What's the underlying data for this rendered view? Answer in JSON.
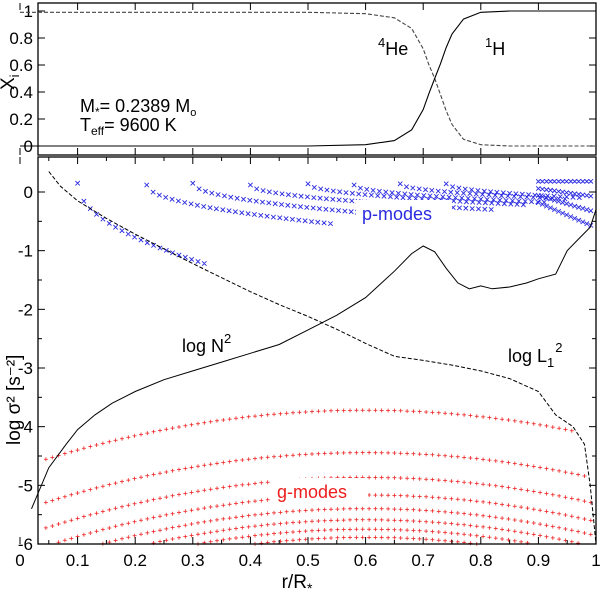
{
  "chart_data": [
    {
      "type": "line",
      "panel": "top",
      "ylabel": "X",
      "ylabel_sub": "i",
      "xlim": [
        0,
        1
      ],
      "ylim": [
        0,
        1
      ],
      "yticks": [
        "0",
        "0.2",
        "0.4",
        "0.6",
        "0.8",
        "1"
      ],
      "yticks_values": [
        0,
        0.2,
        0.4,
        0.6,
        0.8,
        1
      ],
      "params": {
        "mass_label": "M",
        "mass_sub": "*",
        "mass_value": "= 0.2389 M",
        "mass_unit_sub": "o",
        "teff_label": "T",
        "teff_sub": "eff",
        "teff_value": "= 9600 K"
      },
      "labels": {
        "he_super": "4",
        "he": "He",
        "h_super": "1",
        "h": "H"
      },
      "series": [
        {
          "name": "4He",
          "style": "dashed",
          "x": [
            0.0,
            0.5,
            0.6,
            0.65,
            0.68,
            0.7,
            0.71,
            0.72,
            0.73,
            0.74,
            0.75,
            0.77,
            0.8,
            0.85,
            1.0
          ],
          "y": [
            0.99,
            0.99,
            0.98,
            0.95,
            0.87,
            0.72,
            0.6,
            0.5,
            0.38,
            0.26,
            0.16,
            0.05,
            0.01,
            0.0,
            0.0
          ]
        },
        {
          "name": "1H",
          "style": "solid",
          "x": [
            0.0,
            0.5,
            0.6,
            0.65,
            0.68,
            0.7,
            0.71,
            0.72,
            0.73,
            0.74,
            0.75,
            0.77,
            0.8,
            0.85,
            1.0
          ],
          "y": [
            0.0,
            0.0,
            0.01,
            0.04,
            0.12,
            0.27,
            0.39,
            0.5,
            0.61,
            0.73,
            0.83,
            0.94,
            0.99,
            1.0,
            1.0
          ]
        }
      ]
    },
    {
      "type": "line",
      "panel": "bottom",
      "xlabel": "r/R",
      "xlabel_sub": "*",
      "ylabel": "log σ² [s⁻²]",
      "xlim": [
        0,
        1
      ],
      "ylim": [
        -6,
        0.4
      ],
      "xticks": [
        "0",
        "0.1",
        "0.2",
        "0.3",
        "0.4",
        "0.5",
        "0.6",
        "0.7",
        "0.8",
        "0.9",
        "1"
      ],
      "xticks_values": [
        0,
        0.1,
        0.2,
        0.3,
        0.4,
        0.5,
        0.6,
        0.7,
        0.8,
        0.9,
        1
      ],
      "yticks": [
        "0",
        "-1",
        "-2",
        "-3",
        "-4",
        "-5",
        "-6"
      ],
      "yticks_values": [
        0,
        -1,
        -2,
        -3,
        -4,
        -5,
        -6
      ],
      "curve_labels": {
        "n2_text": "log N",
        "n2_sup": "2",
        "l1_text": "log L",
        "l1_sub": "1",
        "l1_sup": "2"
      },
      "mode_labels": {
        "p": "p-modes",
        "g": "g-modes"
      },
      "colors": {
        "p_modes": "#2a2ae0",
        "g_modes": "#ee1c1c"
      },
      "series": [
        {
          "name": "log N²",
          "style": "solid",
          "x": [
            0.02,
            0.05,
            0.08,
            0.1,
            0.13,
            0.16,
            0.2,
            0.25,
            0.3,
            0.35,
            0.4,
            0.45,
            0.5,
            0.55,
            0.6,
            0.65,
            0.68,
            0.7,
            0.72,
            0.74,
            0.76,
            0.78,
            0.8,
            0.82,
            0.85,
            0.88,
            0.9,
            0.93,
            0.95,
            0.97,
            0.99,
            1.0
          ],
          "y": [
            -5.4,
            -4.7,
            -4.3,
            -4.05,
            -3.8,
            -3.6,
            -3.4,
            -3.2,
            -3.05,
            -2.9,
            -2.75,
            -2.6,
            -2.35,
            -2.1,
            -1.8,
            -1.35,
            -1.05,
            -0.92,
            -1.02,
            -1.3,
            -1.55,
            -1.65,
            -1.6,
            -1.65,
            -1.62,
            -1.55,
            -1.48,
            -1.4,
            -1.0,
            -0.8,
            -0.6,
            -0.3
          ]
        },
        {
          "name": "log L1²",
          "style": "dashed",
          "x": [
            0.05,
            0.07,
            0.1,
            0.15,
            0.2,
            0.25,
            0.3,
            0.35,
            0.4,
            0.45,
            0.5,
            0.55,
            0.6,
            0.65,
            0.7,
            0.75,
            0.8,
            0.85,
            0.9,
            0.93,
            0.96,
            0.98,
            0.99,
            1.0
          ],
          "y": [
            0.35,
            0.1,
            -0.15,
            -0.45,
            -0.72,
            -0.97,
            -1.22,
            -1.46,
            -1.7,
            -1.92,
            -2.12,
            -2.34,
            -2.58,
            -2.8,
            -2.87,
            -2.95,
            -3.05,
            -3.18,
            -3.4,
            -3.8,
            -4.0,
            -4.3,
            -5.0,
            -6.0
          ]
        }
      ]
    }
  ]
}
